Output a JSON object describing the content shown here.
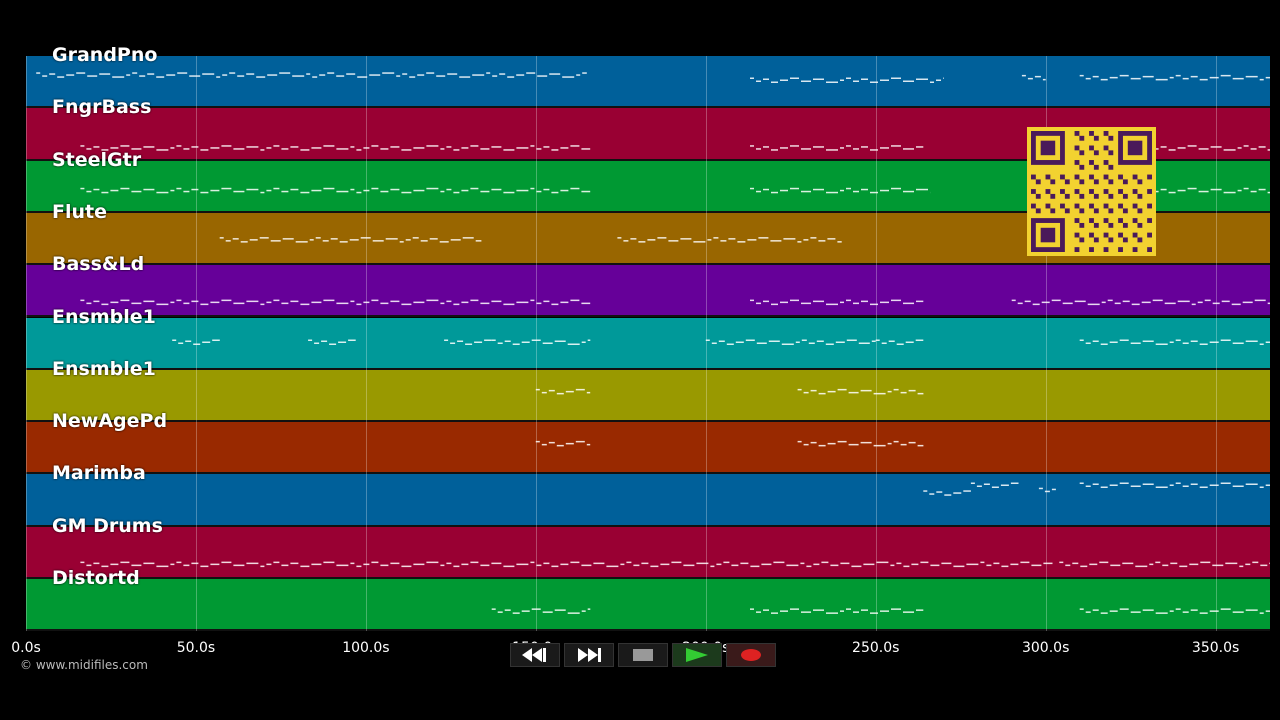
{
  "tracks": [
    {
      "name": "GrandPno",
      "color": "#00609a"
    },
    {
      "name": "FngrBass",
      "color": "#990033"
    },
    {
      "name": "SteelGtr",
      "color": "#009933"
    },
    {
      "name": "Flute",
      "color": "#996600"
    },
    {
      "name": "Bass&Ld",
      "color": "#660099"
    },
    {
      "name": "Ensmble1",
      "color": "#009999"
    },
    {
      "name": "Ensmble1",
      "color": "#999900"
    },
    {
      "name": "NewAgePd",
      "color": "#992900"
    },
    {
      "name": "Marimba",
      "color": "#00609a"
    },
    {
      "name": "GM Drums",
      "color": "#990033"
    },
    {
      "name": "Distortd",
      "color": "#009933"
    }
  ],
  "timeline": {
    "ticks": [
      "0.0s",
      "50.0s",
      "100.0s",
      "150.0s",
      "200.0s",
      "250.0s",
      "300.0s",
      "350.0s"
    ]
  },
  "copyright": "© www.midifiles.com",
  "transport": {
    "buttons": [
      {
        "icon": "rewind-icon",
        "color": "#ffffff"
      },
      {
        "icon": "fast-forward-icon",
        "color": "#ffffff"
      },
      {
        "icon": "stop-icon",
        "color": "#999999"
      },
      {
        "icon": "play-icon",
        "color": "#33cc33"
      },
      {
        "icon": "record-icon",
        "color": "#dd2222"
      }
    ]
  },
  "qr_code": {
    "color": "#f2d230",
    "dots_color": "#4a1a5a"
  }
}
